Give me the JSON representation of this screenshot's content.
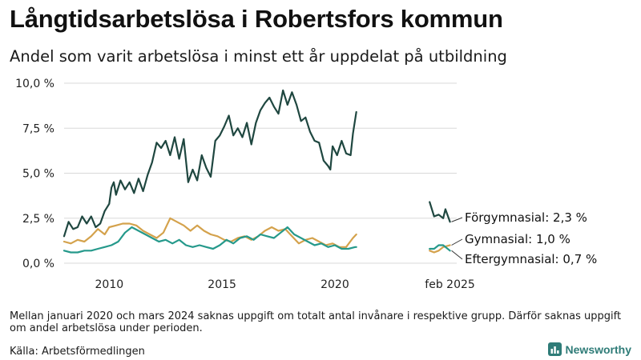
{
  "title": "Långtidsarbetslösa i Robertsfors kommun",
  "subtitle": "Andel som varit arbetslösa i minst ett år uppdelat på utbildning",
  "note": "Mellan januari 2020 och mars 2024 saknas uppgift om totalt antal invånare i respektive grupp. Därför saknas uppgift om andel arbetslösa under perioden.",
  "source": "Källa: Arbetsförmedlingen",
  "brand": {
    "name": "Newsworthy",
    "color": "#2f7c78"
  },
  "chart_data": {
    "type": "line",
    "title": "",
    "xlabel": "",
    "ylabel": "",
    "xlim": [
      2008.0,
      2025.4
    ],
    "ylim": [
      0,
      10
    ],
    "y_ticks": [
      {
        "value": 0,
        "label": "0,0 %"
      },
      {
        "value": 2.5,
        "label": "2,5 %"
      },
      {
        "value": 5,
        "label": "5,0 %"
      },
      {
        "value": 7.5,
        "label": "7,5 %"
      },
      {
        "value": 10,
        "label": "10,0 %"
      }
    ],
    "x_ticks": [
      {
        "value": 2010,
        "label": "2010"
      },
      {
        "value": 2015,
        "label": "2015"
      },
      {
        "value": 2020,
        "label": "2020"
      },
      {
        "value": 2025.1,
        "label": "feb 2025"
      }
    ],
    "grid": "horizontal",
    "legend": "end-of-line labels",
    "series": [
      {
        "name": "Förgymnasial",
        "end_label": "Förgymnasial: 2,3 %",
        "color": "#1f4740",
        "segments": [
          [
            [
              2008.0,
              1.5
            ],
            [
              2008.2,
              2.3
            ],
            [
              2008.4,
              1.9
            ],
            [
              2008.6,
              2.0
            ],
            [
              2008.8,
              2.6
            ],
            [
              2009.0,
              2.2
            ],
            [
              2009.2,
              2.6
            ],
            [
              2009.4,
              2.0
            ],
            [
              2009.6,
              2.2
            ],
            [
              2009.8,
              2.9
            ],
            [
              2010.0,
              3.3
            ],
            [
              2010.1,
              4.2
            ],
            [
              2010.2,
              4.5
            ],
            [
              2010.3,
              3.8
            ],
            [
              2010.5,
              4.6
            ],
            [
              2010.7,
              4.1
            ],
            [
              2010.9,
              4.5
            ],
            [
              2011.1,
              3.9
            ],
            [
              2011.3,
              4.7
            ],
            [
              2011.5,
              4.0
            ],
            [
              2011.7,
              4.9
            ],
            [
              2011.9,
              5.6
            ],
            [
              2012.1,
              6.7
            ],
            [
              2012.3,
              6.4
            ],
            [
              2012.5,
              6.8
            ],
            [
              2012.7,
              6.0
            ],
            [
              2012.9,
              7.0
            ],
            [
              2013.1,
              5.8
            ],
            [
              2013.3,
              6.9
            ],
            [
              2013.5,
              4.5
            ],
            [
              2013.7,
              5.2
            ],
            [
              2013.9,
              4.6
            ],
            [
              2014.1,
              6.0
            ],
            [
              2014.3,
              5.3
            ],
            [
              2014.5,
              4.8
            ],
            [
              2014.7,
              6.8
            ],
            [
              2014.9,
              7.1
            ],
            [
              2015.1,
              7.6
            ],
            [
              2015.3,
              8.2
            ],
            [
              2015.5,
              7.1
            ],
            [
              2015.7,
              7.5
            ],
            [
              2015.9,
              7.0
            ],
            [
              2016.1,
              7.8
            ],
            [
              2016.3,
              6.6
            ],
            [
              2016.5,
              7.8
            ],
            [
              2016.7,
              8.5
            ],
            [
              2016.9,
              8.9
            ],
            [
              2017.1,
              9.2
            ],
            [
              2017.3,
              8.7
            ],
            [
              2017.5,
              8.3
            ],
            [
              2017.7,
              9.6
            ],
            [
              2017.9,
              8.8
            ],
            [
              2018.1,
              9.5
            ],
            [
              2018.3,
              8.8
            ],
            [
              2018.5,
              7.9
            ],
            [
              2018.7,
              8.1
            ],
            [
              2018.9,
              7.3
            ],
            [
              2019.1,
              6.8
            ],
            [
              2019.3,
              6.7
            ],
            [
              2019.5,
              5.7
            ],
            [
              2019.7,
              5.4
            ],
            [
              2019.8,
              5.2
            ],
            [
              2019.9,
              6.5
            ],
            [
              2020.1,
              6.0
            ],
            [
              2020.3,
              6.8
            ],
            [
              2020.5,
              6.1
            ],
            [
              2020.7,
              6.0
            ],
            [
              2020.8,
              7.2
            ],
            [
              2020.95,
              8.4
            ]
          ],
          [
            [
              2024.2,
              3.4
            ],
            [
              2024.4,
              2.6
            ],
            [
              2024.6,
              2.7
            ],
            [
              2024.8,
              2.5
            ],
            [
              2024.9,
              3.0
            ],
            [
              2025.1,
              2.3
            ]
          ]
        ]
      },
      {
        "name": "Gymnasial",
        "end_label": "Gymnasial: 1,0 %",
        "color": "#d4a24c",
        "segments": [
          [
            [
              2008.0,
              1.2
            ],
            [
              2008.3,
              1.1
            ],
            [
              2008.6,
              1.3
            ],
            [
              2008.9,
              1.2
            ],
            [
              2009.2,
              1.5
            ],
            [
              2009.5,
              1.9
            ],
            [
              2009.8,
              1.6
            ],
            [
              2010.0,
              2.0
            ],
            [
              2010.3,
              2.1
            ],
            [
              2010.6,
              2.2
            ],
            [
              2010.9,
              2.2
            ],
            [
              2011.2,
              2.1
            ],
            [
              2011.5,
              1.8
            ],
            [
              2011.8,
              1.6
            ],
            [
              2012.1,
              1.4
            ],
            [
              2012.4,
              1.7
            ],
            [
              2012.7,
              2.5
            ],
            [
              2013.0,
              2.3
            ],
            [
              2013.3,
              2.1
            ],
            [
              2013.6,
              1.8
            ],
            [
              2013.9,
              2.1
            ],
            [
              2014.2,
              1.8
            ],
            [
              2014.5,
              1.6
            ],
            [
              2014.8,
              1.5
            ],
            [
              2015.1,
              1.3
            ],
            [
              2015.4,
              1.2
            ],
            [
              2015.7,
              1.4
            ],
            [
              2016.0,
              1.5
            ],
            [
              2016.3,
              1.3
            ],
            [
              2016.6,
              1.5
            ],
            [
              2016.9,
              1.8
            ],
            [
              2017.2,
              2.0
            ],
            [
              2017.5,
              1.8
            ],
            [
              2017.8,
              1.9
            ],
            [
              2018.1,
              1.5
            ],
            [
              2018.4,
              1.1
            ],
            [
              2018.7,
              1.3
            ],
            [
              2019.0,
              1.4
            ],
            [
              2019.3,
              1.2
            ],
            [
              2019.6,
              1.0
            ],
            [
              2019.9,
              1.1
            ],
            [
              2020.2,
              0.9
            ],
            [
              2020.5,
              0.9
            ],
            [
              2020.8,
              1.4
            ],
            [
              2020.95,
              1.6
            ]
          ],
          [
            [
              2024.2,
              0.7
            ],
            [
              2024.4,
              0.6
            ],
            [
              2024.6,
              0.7
            ],
            [
              2024.8,
              0.9
            ],
            [
              2025.1,
              1.0
            ]
          ]
        ]
      },
      {
        "name": "Eftergymnasial",
        "end_label": "Eftergymnasial: 0,7 %",
        "color": "#25998b",
        "segments": [
          [
            [
              2008.0,
              0.7
            ],
            [
              2008.3,
              0.6
            ],
            [
              2008.6,
              0.6
            ],
            [
              2008.9,
              0.7
            ],
            [
              2009.2,
              0.7
            ],
            [
              2009.5,
              0.8
            ],
            [
              2009.8,
              0.9
            ],
            [
              2010.1,
              1.0
            ],
            [
              2010.4,
              1.2
            ],
            [
              2010.7,
              1.7
            ],
            [
              2011.0,
              2.0
            ],
            [
              2011.3,
              1.8
            ],
            [
              2011.6,
              1.6
            ],
            [
              2011.9,
              1.4
            ],
            [
              2012.2,
              1.2
            ],
            [
              2012.5,
              1.3
            ],
            [
              2012.8,
              1.1
            ],
            [
              2013.1,
              1.3
            ],
            [
              2013.4,
              1.0
            ],
            [
              2013.7,
              0.9
            ],
            [
              2014.0,
              1.0
            ],
            [
              2014.3,
              0.9
            ],
            [
              2014.6,
              0.8
            ],
            [
              2014.9,
              1.0
            ],
            [
              2015.2,
              1.3
            ],
            [
              2015.5,
              1.1
            ],
            [
              2015.8,
              1.4
            ],
            [
              2016.1,
              1.5
            ],
            [
              2016.4,
              1.3
            ],
            [
              2016.7,
              1.6
            ],
            [
              2017.0,
              1.5
            ],
            [
              2017.3,
              1.4
            ],
            [
              2017.6,
              1.7
            ],
            [
              2017.9,
              2.0
            ],
            [
              2018.2,
              1.6
            ],
            [
              2018.5,
              1.4
            ],
            [
              2018.8,
              1.2
            ],
            [
              2019.1,
              1.0
            ],
            [
              2019.4,
              1.1
            ],
            [
              2019.7,
              0.9
            ],
            [
              2020.0,
              1.0
            ],
            [
              2020.3,
              0.8
            ],
            [
              2020.6,
              0.8
            ],
            [
              2020.9,
              0.9
            ],
            [
              2020.95,
              0.9
            ]
          ],
          [
            [
              2024.2,
              0.8
            ],
            [
              2024.4,
              0.8
            ],
            [
              2024.6,
              1.0
            ],
            [
              2024.8,
              1.0
            ],
            [
              2025.1,
              0.7
            ]
          ]
        ]
      }
    ]
  }
}
